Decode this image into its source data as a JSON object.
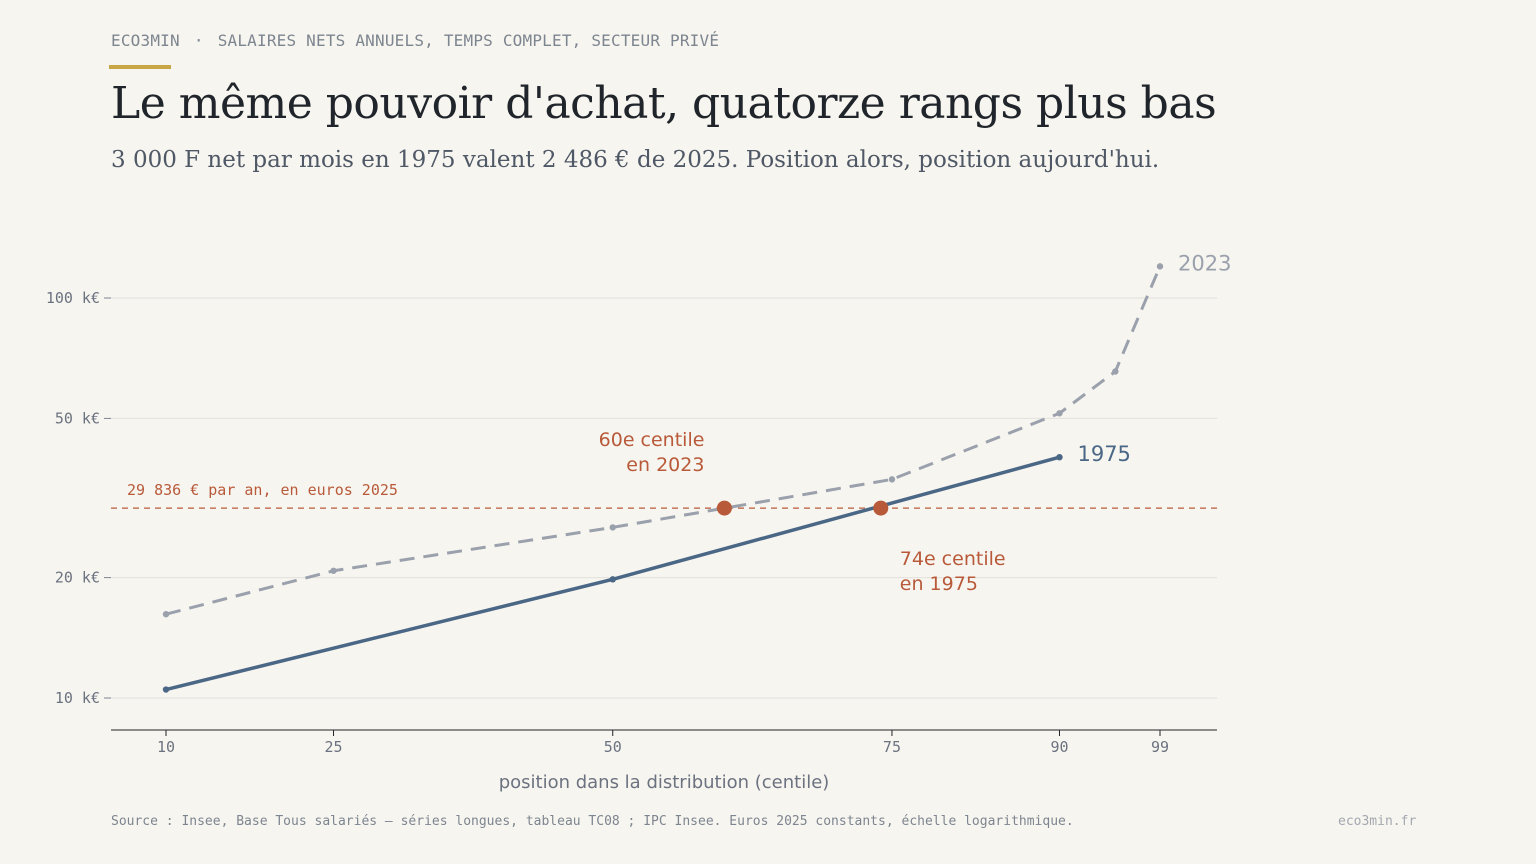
{
  "header": {
    "brand": "ECO3MIN",
    "separator": "·",
    "kicker": "SALAIRES NETS ANNUELS, TEMPS COMPLET, SECTEUR PRIVÉ",
    "title": "Le même pouvoir d'achat, quatorze rangs plus bas",
    "subtitle": "3 000 F net par mois en 1975 valent 2 486 € de 2025. Position alors, position aujourd'hui."
  },
  "chart_data": {
    "type": "line",
    "xlabel": "position dans la distribution (centile)",
    "ylabel": "",
    "y_scale": "log",
    "ylim": [
      8.5,
      130
    ],
    "xlim": [
      10,
      103
    ],
    "x_ticks": [
      10,
      25,
      50,
      75,
      90,
      99
    ],
    "y_ticks": [
      {
        "value": 10,
        "label": "10 k€"
      },
      {
        "value": 20,
        "label": "20 k€"
      },
      {
        "value": 50,
        "label": "50 k€"
      },
      {
        "value": 100,
        "label": "100 k€"
      }
    ],
    "grid": true,
    "series": [
      {
        "name": "2023",
        "color": "#9aa1ad",
        "dashed": true,
        "x": [
          10,
          25,
          50,
          75,
          90,
          95,
          99
        ],
        "y": [
          16.2,
          20.8,
          26.7,
          35.2,
          51.5,
          65.5,
          120
        ]
      },
      {
        "name": "1975",
        "color": "#4a6786",
        "dashed": false,
        "x": [
          10,
          50,
          90
        ],
        "y": [
          10.5,
          19.8,
          40.0
        ]
      }
    ],
    "reference_line": {
      "value": 29.836,
      "label": "29 836 € par an, en euros 2025",
      "color": "#b85a3a"
    },
    "highlights": [
      {
        "x": 60,
        "y": 29.836,
        "label_lines": [
          "60e centile",
          "en 2023"
        ]
      },
      {
        "x": 74,
        "y": 29.836,
        "label_lines": [
          "74e centile",
          "en 1975"
        ]
      }
    ],
    "accent_color": "#b85a3a"
  },
  "footer": {
    "source": "Source : Insee, Base Tous salariés — séries longues, tableau TC08 ; IPC Insee.  Euros 2025 constants, échelle logarithmique.",
    "site": "eco3min.fr"
  }
}
